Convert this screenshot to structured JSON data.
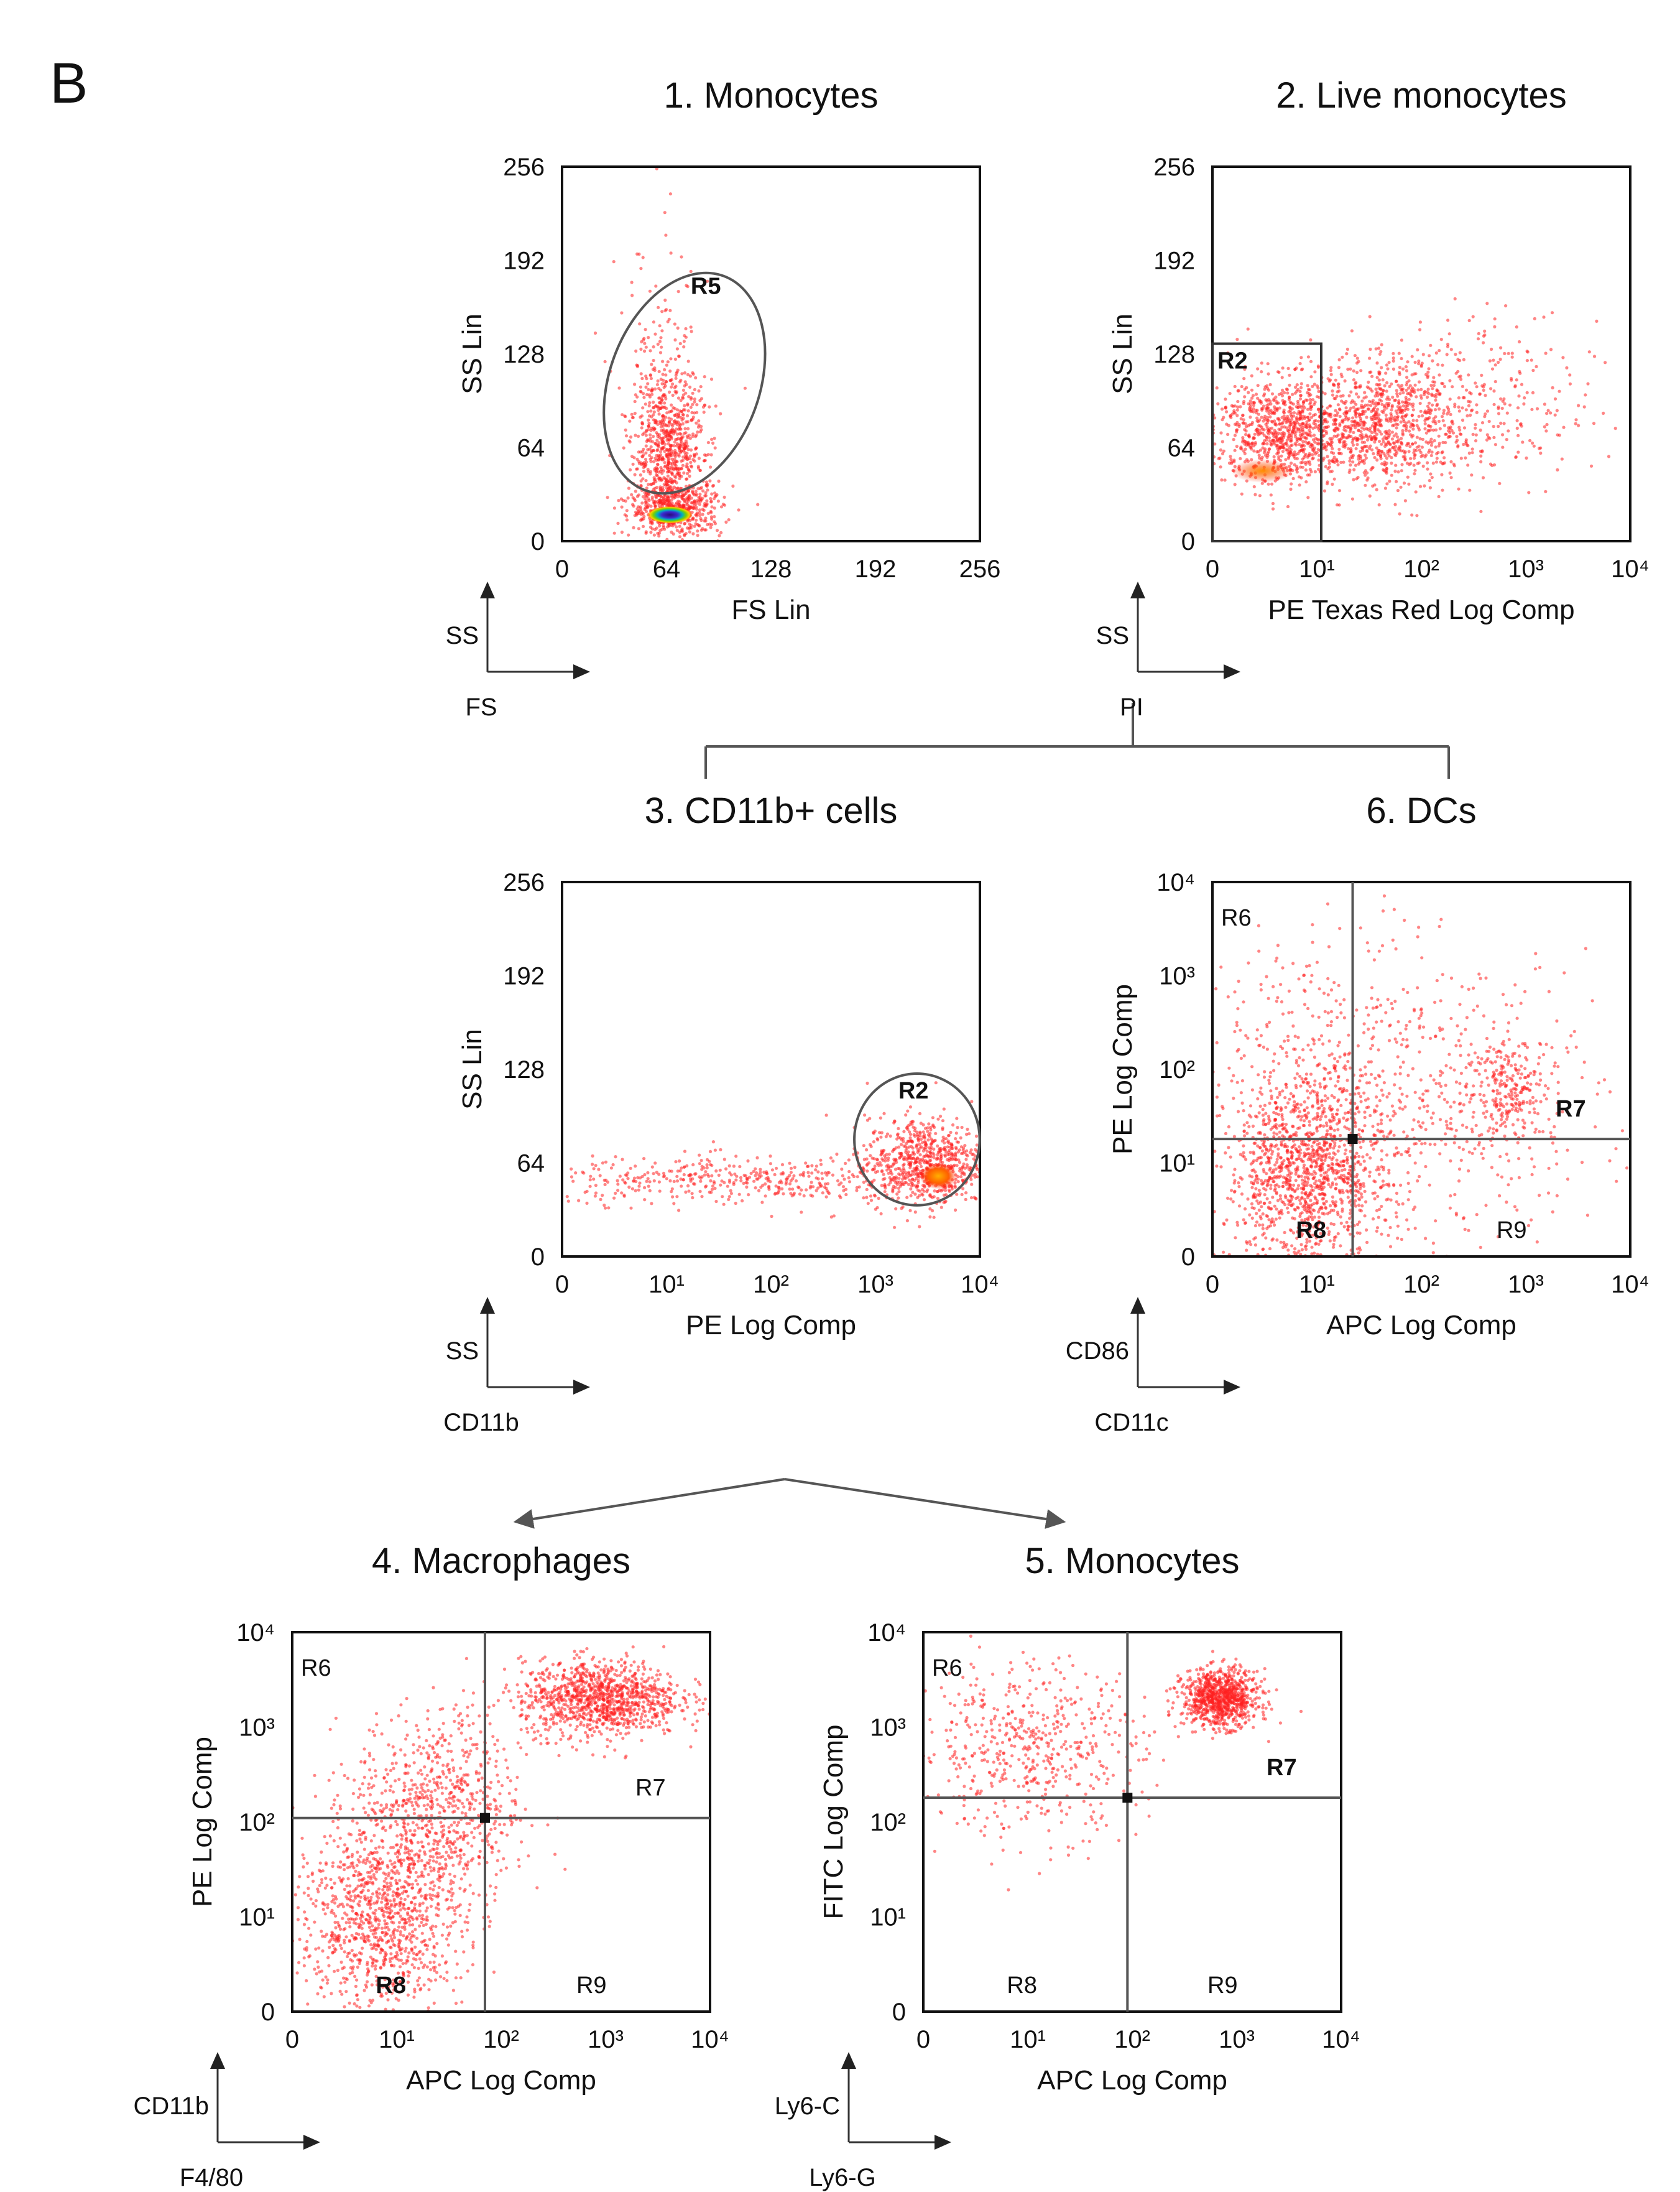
{
  "figure_label": "B",
  "connectors": {
    "color": "#555555"
  },
  "chart_data": [
    {
      "id": "p1",
      "type": "scatter",
      "title": "1. Monocytes",
      "xlabel": "FS Lin",
      "ylabel": "SS Lin",
      "x_scale": "linear",
      "y_scale": "linear",
      "xlim": [
        0,
        256
      ],
      "ylim": [
        0,
        256
      ],
      "x_ticks": [
        "0",
        "64",
        "128",
        "192",
        "256"
      ],
      "y_ticks": [
        "0",
        "64",
        "128",
        "192",
        "256"
      ],
      "marker_axes": {
        "y": "SS",
        "x": "FS"
      },
      "gates": [
        {
          "shape": "ellipse",
          "label": "R5",
          "center": [
            75,
            108
          ],
          "radii": [
            46,
            78
          ],
          "rotation_deg": 20
        }
      ],
      "populations": [
        {
          "center": [
            65,
            62
          ],
          "spread": [
            11,
            26
          ],
          "count": 750
        },
        {
          "center": [
            70,
            22
          ],
          "spread": [
            14,
            9
          ],
          "count": 500
        },
        {
          "center": [
            62,
            100
          ],
          "spread": [
            14,
            55
          ],
          "count": 160
        }
      ],
      "hotspots": [
        {
          "center": [
            66,
            18
          ],
          "radii": [
            14,
            6
          ],
          "intensity": "high"
        }
      ]
    },
    {
      "id": "p2",
      "type": "scatter",
      "title": "2. Live monocytes",
      "xlabel": "PE Texas Red Log Comp",
      "ylabel": "SS Lin",
      "x_scale": "log",
      "y_scale": "linear",
      "xlim": [
        0,
        10000
      ],
      "ylim": [
        0,
        256
      ],
      "x_ticks": [
        "0",
        "10¹",
        "10²",
        "10³",
        "10⁴"
      ],
      "y_ticks": [
        "0",
        "64",
        "128",
        "192",
        "256"
      ],
      "marker_axes": {
        "y": "SS",
        "x": "PI"
      },
      "gates": [
        {
          "shape": "rect",
          "label": "R2",
          "x_range": [
            0,
            11
          ],
          "y_range": [
            0,
            135
          ]
        }
      ],
      "populations": [
        {
          "center": [
            5,
            75
          ],
          "spread": [
            0.35,
            18
          ],
          "count": 900
        },
        {
          "center": [
            45,
            80
          ],
          "spread": [
            0.35,
            20
          ],
          "count": 700
        },
        {
          "center": [
            150,
            90
          ],
          "spread": [
            0.75,
            30
          ],
          "count": 450
        }
      ],
      "hotspots": [
        {
          "center": [
            3,
            48
          ],
          "radii": [
            0.3,
            8
          ],
          "intensity": "low"
        }
      ]
    },
    {
      "id": "p3",
      "type": "scatter",
      "title": "3. CD11b+ cells",
      "xlabel": "PE Log Comp",
      "ylabel": "SS Lin",
      "x_scale": "log",
      "y_scale": "linear",
      "xlim": [
        0,
        10000
      ],
      "ylim": [
        0,
        256
      ],
      "x_ticks": [
        "0",
        "10¹",
        "10²",
        "10³",
        "10⁴"
      ],
      "y_ticks": [
        "0",
        "64",
        "128",
        "192",
        "256"
      ],
      "marker_axes": {
        "y": "SS",
        "x": "CD11b"
      },
      "gates": [
        {
          "shape": "ellipse",
          "label": "R2",
          "center": [
            2500,
            80
          ],
          "radii_log_decades": 0.6,
          "radius_y": 45,
          "rotation_deg": 0
        }
      ],
      "populations": [
        {
          "center": [
            3000,
            65
          ],
          "spread": [
            0.28,
            15
          ],
          "count": 700
        },
        {
          "center": [
            80,
            52
          ],
          "spread": [
            1.1,
            8
          ],
          "count": 500
        }
      ],
      "hotspots": [
        {
          "center": [
            4000,
            55
          ],
          "radii": [
            0.18,
            9
          ],
          "intensity": "medium"
        }
      ]
    },
    {
      "id": "p6",
      "type": "scatter",
      "title": "6. DCs",
      "xlabel": "APC Log Comp",
      "ylabel": "PE Log Comp",
      "x_scale": "log",
      "y_scale": "log",
      "xlim": [
        0,
        10000
      ],
      "ylim": [
        0,
        10000
      ],
      "x_ticks": [
        "0",
        "10¹",
        "10²",
        "10³",
        "10⁴"
      ],
      "y_ticks": [
        "0",
        "10¹",
        "10²",
        "10³",
        "10⁴"
      ],
      "marker_axes": {
        "y": "CD86",
        "x": "CD11c"
      },
      "quadrant_split": [
        22,
        18
      ],
      "region_labels": [
        "R6",
        "R7",
        "R8",
        "R9"
      ],
      "populations": [
        {
          "center": [
            8,
            8
          ],
          "spread": [
            0.38,
            0.5
          ],
          "count": 1300
        },
        {
          "center": [
            700,
            60
          ],
          "spread": [
            0.22,
            0.28
          ],
          "count": 250
        },
        {
          "center": [
            80,
            40
          ],
          "spread": [
            0.9,
            0.8
          ],
          "count": 600
        },
        {
          "center": [
            8,
            300
          ],
          "spread": [
            0.5,
            0.5
          ],
          "count": 120
        }
      ],
      "hotspots": []
    },
    {
      "id": "p4",
      "type": "scatter",
      "title": "4. Macrophages",
      "xlabel": "APC Log Comp",
      "ylabel": "PE Log Comp",
      "x_scale": "log",
      "y_scale": "log",
      "xlim": [
        0,
        10000
      ],
      "ylim": [
        0,
        10000
      ],
      "x_ticks": [
        "0",
        "10¹",
        "10²",
        "10³",
        "10⁴"
      ],
      "y_ticks": [
        "0",
        "10¹",
        "10²",
        "10³",
        "10⁴"
      ],
      "marker_axes": {
        "y": "CD11b",
        "x": "F4/80"
      },
      "quadrant_split": [
        70,
        110
      ],
      "region_labels": [
        "R6",
        "R7",
        "R8",
        "R9"
      ],
      "populations": [
        {
          "center": [
            7,
            10
          ],
          "spread": [
            0.4,
            0.5
          ],
          "count": 1100
        },
        {
          "center": [
            25,
            150
          ],
          "spread": [
            0.4,
            0.5
          ],
          "count": 700
        },
        {
          "center": [
            900,
            2000
          ],
          "spread": [
            0.38,
            0.2
          ],
          "count": 1100
        }
      ],
      "hotspots": []
    },
    {
      "id": "p5",
      "type": "scatter",
      "title": "5. Monocytes",
      "xlabel": "APC Log Comp",
      "ylabel": "FITC Log Comp",
      "x_scale": "log",
      "y_scale": "log",
      "xlim": [
        0,
        10000
      ],
      "ylim": [
        0,
        10000
      ],
      "x_ticks": [
        "0",
        "10¹",
        "10²",
        "10³",
        "10⁴"
      ],
      "y_ticks": [
        "0",
        "10¹",
        "10²",
        "10³",
        "10⁴"
      ],
      "marker_axes": {
        "y": "Ly6-C",
        "x": "Ly6-G"
      },
      "quadrant_split": [
        90,
        180
      ],
      "region_labels": [
        "R6",
        "R7",
        "R8",
        "R9"
      ],
      "populations": [
        {
          "center": [
            700,
            2000
          ],
          "spread": [
            0.18,
            0.15
          ],
          "count": 900
        },
        {
          "center": [
            10,
            600
          ],
          "spread": [
            0.55,
            0.45
          ],
          "count": 550
        }
      ],
      "hotspots": []
    }
  ]
}
